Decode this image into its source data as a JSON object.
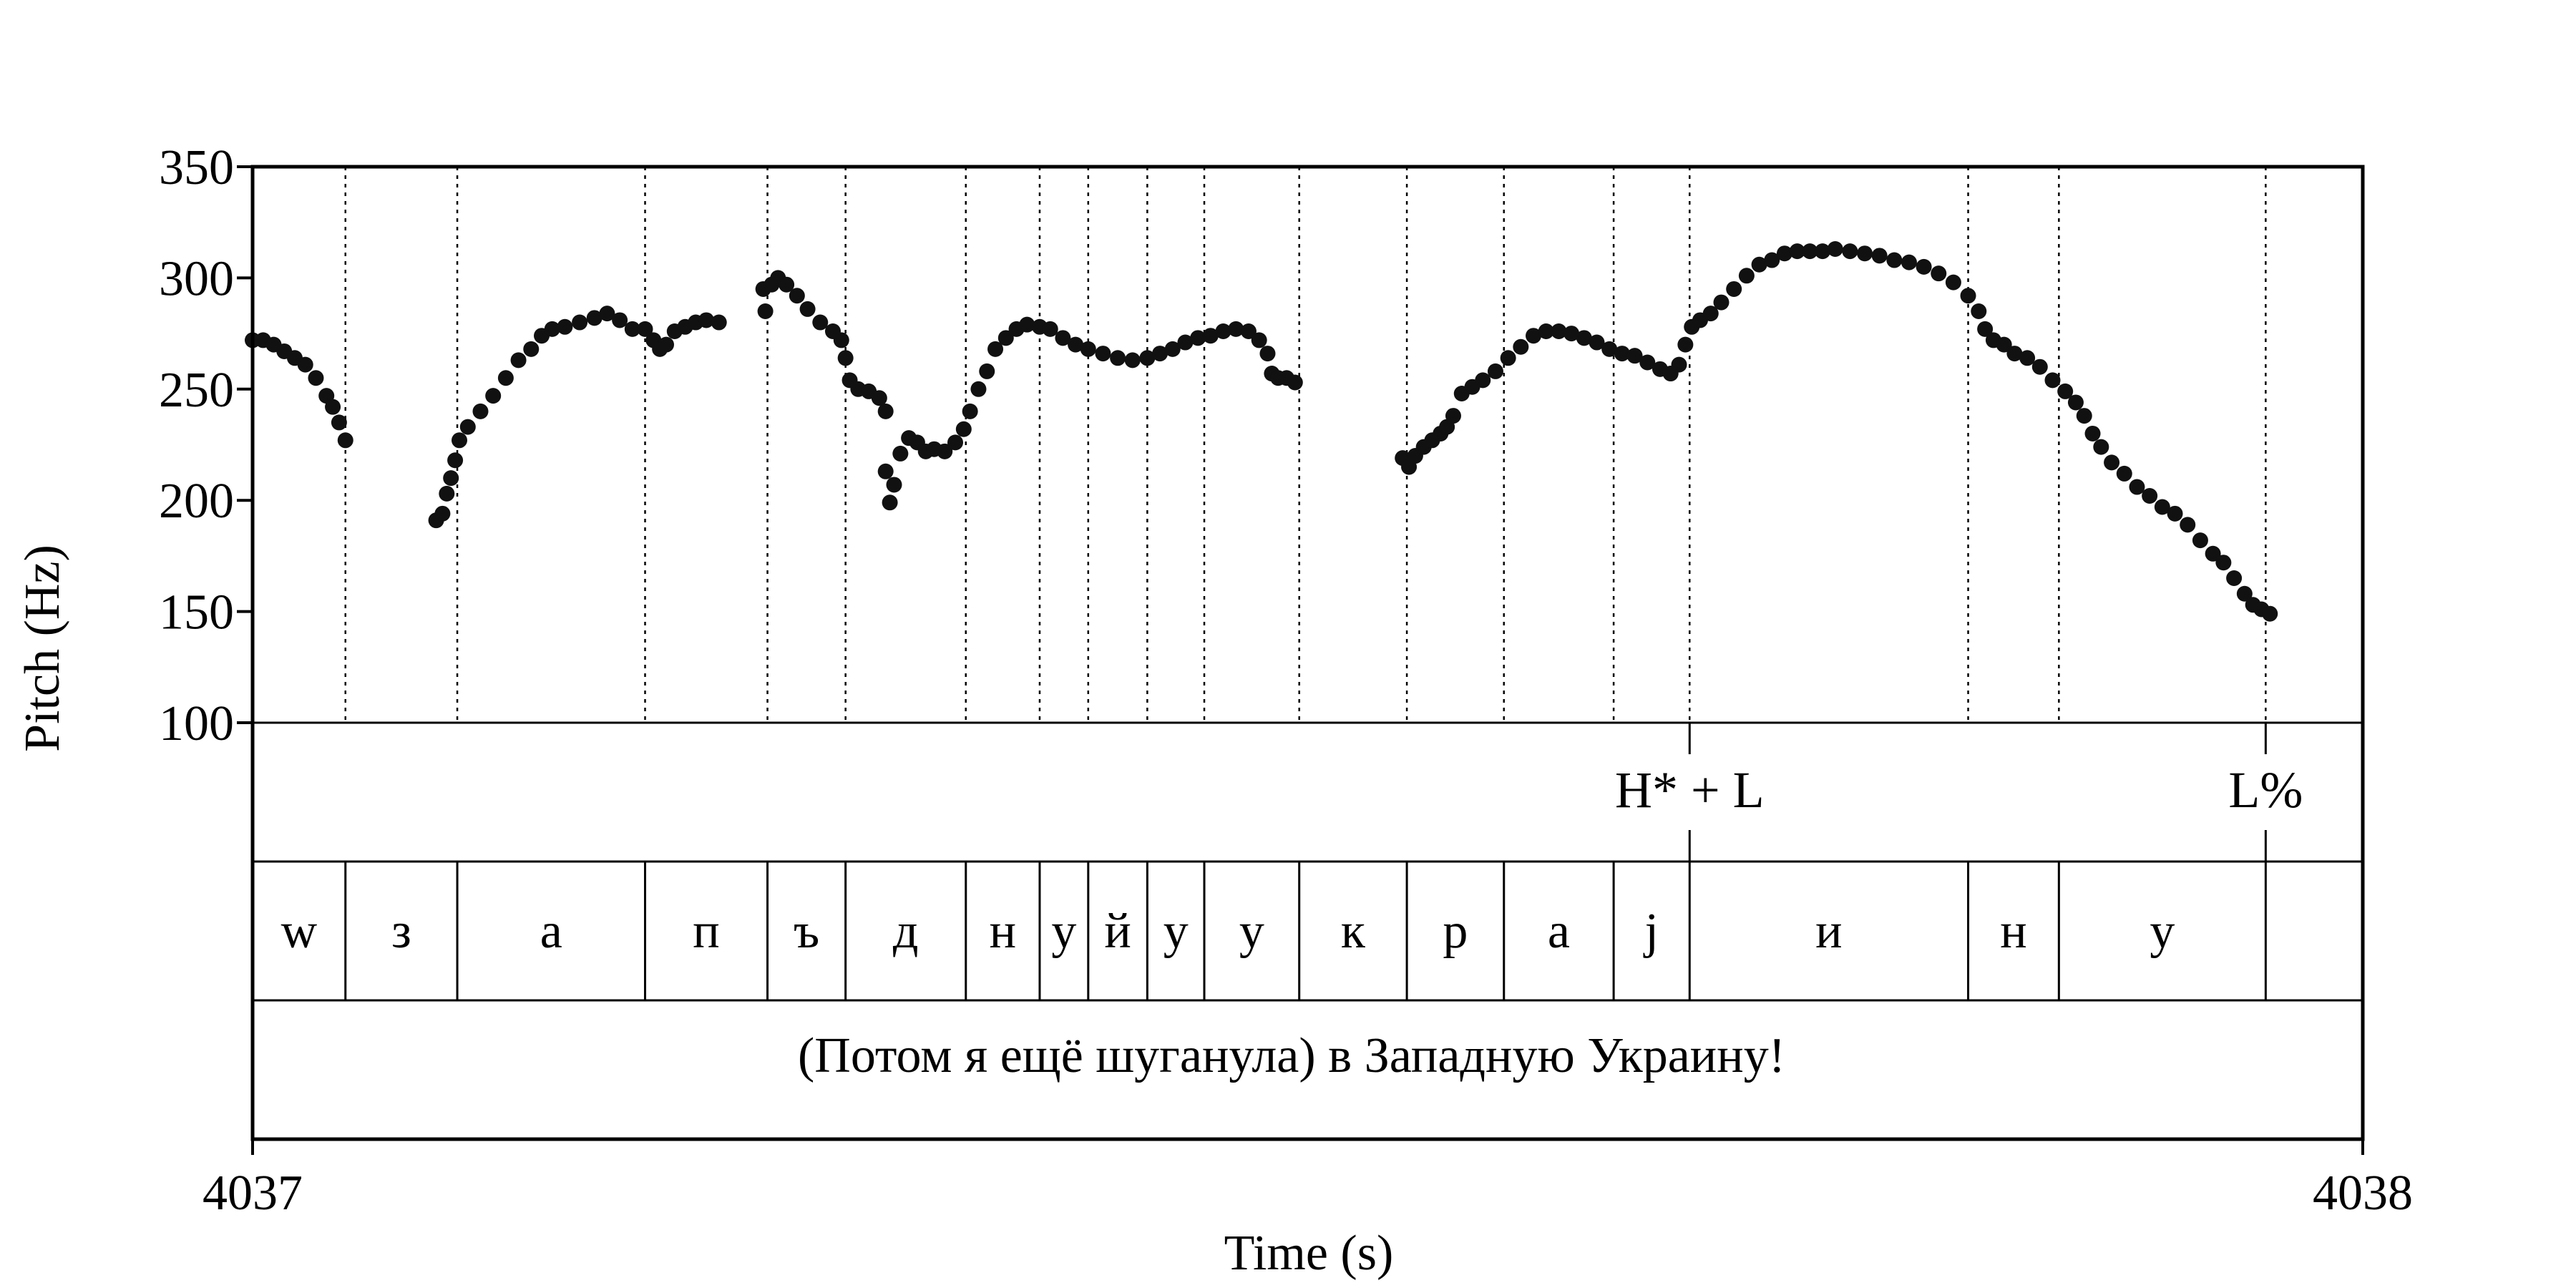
{
  "chart_data": {
    "type": "scatter",
    "ylabel": "Pitch (Hz)",
    "xlabel": "Time (s)",
    "ylim": [
      100,
      350
    ],
    "yticks": [
      100,
      150,
      200,
      250,
      300,
      350
    ],
    "xlim": [
      0,
      1
    ],
    "xtick_labels": [
      "4037",
      "4038"
    ],
    "grid": false,
    "point_color": "#111111",
    "boundaries": [
      0.044,
      0.097,
      0.186,
      0.244,
      0.281,
      0.338,
      0.373,
      0.396,
      0.424,
      0.451,
      0.496,
      0.547,
      0.593,
      0.645,
      0.681,
      0.813,
      0.856,
      0.954
    ],
    "tones": [
      {
        "label": "H* + L",
        "t": 0.681
      },
      {
        "label": "L%",
        "t": 0.954
      }
    ],
    "segments": [
      {
        "label": "w",
        "t0": 0.0,
        "t1": 0.044
      },
      {
        "label": "з",
        "t0": 0.044,
        "t1": 0.097
      },
      {
        "label": "а",
        "t0": 0.097,
        "t1": 0.186
      },
      {
        "label": "п",
        "t0": 0.186,
        "t1": 0.244
      },
      {
        "label": "ъ",
        "t0": 0.244,
        "t1": 0.281
      },
      {
        "label": "д",
        "t0": 0.281,
        "t1": 0.338
      },
      {
        "label": "н",
        "t0": 0.338,
        "t1": 0.373
      },
      {
        "label": "у",
        "t0": 0.373,
        "t1": 0.396
      },
      {
        "label": "й",
        "t0": 0.396,
        "t1": 0.424
      },
      {
        "label": "у",
        "t0": 0.424,
        "t1": 0.451
      },
      {
        "label": "у",
        "t0": 0.451,
        "t1": 0.496
      },
      {
        "label": "к",
        "t0": 0.496,
        "t1": 0.547
      },
      {
        "label": "р",
        "t0": 0.547,
        "t1": 0.593
      },
      {
        "label": "а",
        "t0": 0.593,
        "t1": 0.645
      },
      {
        "label": "j",
        "t0": 0.645,
        "t1": 0.681
      },
      {
        "label": "и",
        "t0": 0.681,
        "t1": 0.813
      },
      {
        "label": "н",
        "t0": 0.813,
        "t1": 0.856
      },
      {
        "label": "у",
        "t0": 0.856,
        "t1": 0.954
      }
    ],
    "sentence": "(Потом я ещё шуганула) в Западную Украину!",
    "pitch_contour": [
      [
        0.0,
        272
      ],
      [
        0.005,
        272
      ],
      [
        0.01,
        270
      ],
      [
        0.015,
        267
      ],
      [
        0.02,
        264
      ],
      [
        0.025,
        261
      ],
      [
        0.03,
        255
      ],
      [
        0.035,
        247
      ],
      [
        0.038,
        242
      ],
      [
        0.041,
        235
      ],
      [
        0.044,
        227
      ],
      [
        0.087,
        191
      ],
      [
        0.09,
        194
      ],
      [
        0.092,
        203
      ],
      [
        0.094,
        210
      ],
      [
        0.096,
        218
      ],
      [
        0.098,
        227
      ],
      [
        0.102,
        233
      ],
      [
        0.108,
        240
      ],
      [
        0.114,
        247
      ],
      [
        0.12,
        255
      ],
      [
        0.126,
        263
      ],
      [
        0.132,
        268
      ],
      [
        0.137,
        274
      ],
      [
        0.142,
        277
      ],
      [
        0.148,
        278
      ],
      [
        0.155,
        280
      ],
      [
        0.162,
        282
      ],
      [
        0.168,
        284
      ],
      [
        0.174,
        281
      ],
      [
        0.18,
        277
      ],
      [
        0.186,
        277
      ],
      [
        0.19,
        272
      ],
      [
        0.193,
        268
      ],
      [
        0.196,
        270
      ],
      [
        0.2,
        276
      ],
      [
        0.205,
        278
      ],
      [
        0.21,
        280
      ],
      [
        0.215,
        281
      ],
      [
        0.221,
        280
      ],
      [
        0.242,
        295
      ],
      [
        0.243,
        285
      ],
      [
        0.246,
        297
      ],
      [
        0.249,
        300
      ],
      [
        0.253,
        297
      ],
      [
        0.258,
        292
      ],
      [
        0.263,
        286
      ],
      [
        0.269,
        280
      ],
      [
        0.275,
        276
      ],
      [
        0.279,
        272
      ],
      [
        0.281,
        264
      ],
      [
        0.283,
        254
      ],
      [
        0.287,
        250
      ],
      [
        0.292,
        249
      ],
      [
        0.297,
        246
      ],
      [
        0.3,
        240
      ],
      [
        0.3,
        213
      ],
      [
        0.302,
        199
      ],
      [
        0.304,
        207
      ],
      [
        0.307,
        221
      ],
      [
        0.311,
        228
      ],
      [
        0.315,
        226
      ],
      [
        0.319,
        222
      ],
      [
        0.323,
        223
      ],
      [
        0.328,
        222
      ],
      [
        0.333,
        226
      ],
      [
        0.337,
        232
      ],
      [
        0.34,
        240
      ],
      [
        0.344,
        250
      ],
      [
        0.348,
        258
      ],
      [
        0.352,
        268
      ],
      [
        0.357,
        273
      ],
      [
        0.362,
        277
      ],
      [
        0.367,
        279
      ],
      [
        0.373,
        278
      ],
      [
        0.378,
        277
      ],
      [
        0.384,
        273
      ],
      [
        0.39,
        270
      ],
      [
        0.396,
        268
      ],
      [
        0.403,
        266
      ],
      [
        0.41,
        264
      ],
      [
        0.417,
        263
      ],
      [
        0.424,
        264
      ],
      [
        0.43,
        266
      ],
      [
        0.436,
        268
      ],
      [
        0.442,
        271
      ],
      [
        0.448,
        273
      ],
      [
        0.454,
        274
      ],
      [
        0.46,
        276
      ],
      [
        0.466,
        277
      ],
      [
        0.472,
        276
      ],
      [
        0.477,
        272
      ],
      [
        0.481,
        266
      ],
      [
        0.483,
        257
      ],
      [
        0.486,
        255
      ],
      [
        0.49,
        255
      ],
      [
        0.494,
        253
      ],
      [
        0.545,
        219
      ],
      [
        0.548,
        215
      ],
      [
        0.551,
        220
      ],
      [
        0.555,
        224
      ],
      [
        0.559,
        227
      ],
      [
        0.563,
        230
      ],
      [
        0.566,
        233
      ],
      [
        0.569,
        238
      ],
      [
        0.573,
        248
      ],
      [
        0.578,
        251
      ],
      [
        0.583,
        254
      ],
      [
        0.589,
        258
      ],
      [
        0.595,
        264
      ],
      [
        0.601,
        269
      ],
      [
        0.607,
        274
      ],
      [
        0.613,
        276
      ],
      [
        0.619,
        276
      ],
      [
        0.625,
        275
      ],
      [
        0.631,
        273
      ],
      [
        0.637,
        271
      ],
      [
        0.643,
        268
      ],
      [
        0.649,
        266
      ],
      [
        0.655,
        265
      ],
      [
        0.661,
        262
      ],
      [
        0.667,
        259
      ],
      [
        0.672,
        257
      ],
      [
        0.676,
        261
      ],
      [
        0.679,
        270
      ],
      [
        0.682,
        278
      ],
      [
        0.686,
        281
      ],
      [
        0.691,
        284
      ],
      [
        0.696,
        289
      ],
      [
        0.702,
        295
      ],
      [
        0.708,
        301
      ],
      [
        0.714,
        306
      ],
      [
        0.72,
        308
      ],
      [
        0.726,
        311
      ],
      [
        0.732,
        312
      ],
      [
        0.738,
        312
      ],
      [
        0.744,
        312
      ],
      [
        0.75,
        313
      ],
      [
        0.757,
        312
      ],
      [
        0.764,
        311
      ],
      [
        0.771,
        310
      ],
      [
        0.778,
        308
      ],
      [
        0.785,
        307
      ],
      [
        0.792,
        305
      ],
      [
        0.799,
        302
      ],
      [
        0.806,
        298
      ],
      [
        0.813,
        292
      ],
      [
        0.818,
        285
      ],
      [
        0.821,
        277
      ],
      [
        0.825,
        272
      ],
      [
        0.83,
        270
      ],
      [
        0.835,
        266
      ],
      [
        0.841,
        264
      ],
      [
        0.847,
        260
      ],
      [
        0.853,
        254
      ],
      [
        0.859,
        249
      ],
      [
        0.864,
        244
      ],
      [
        0.868,
        238
      ],
      [
        0.872,
        230
      ],
      [
        0.876,
        224
      ],
      [
        0.881,
        217
      ],
      [
        0.887,
        212
      ],
      [
        0.893,
        206
      ],
      [
        0.899,
        202
      ],
      [
        0.905,
        197
      ],
      [
        0.911,
        194
      ],
      [
        0.917,
        189
      ],
      [
        0.923,
        182
      ],
      [
        0.929,
        176
      ],
      [
        0.934,
        172
      ],
      [
        0.939,
        165
      ],
      [
        0.944,
        158
      ],
      [
        0.948,
        153
      ],
      [
        0.952,
        151
      ],
      [
        0.956,
        149
      ]
    ]
  }
}
